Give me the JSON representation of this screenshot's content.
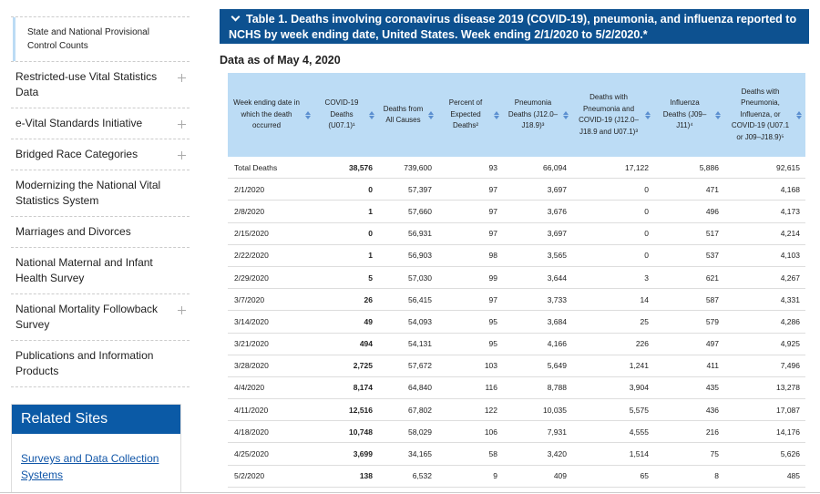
{
  "sidebar": {
    "items": [
      {
        "label": "State and National Provisional Control Counts",
        "sub": true,
        "expandable": false
      },
      {
        "label": "Restricted-use Vital Statistics Data",
        "sub": false,
        "expandable": true
      },
      {
        "label": "e-Vital Standards Initiative",
        "sub": false,
        "expandable": true
      },
      {
        "label": "Bridged Race Categories",
        "sub": false,
        "expandable": true
      },
      {
        "label": "Modernizing the National Vital Statistics System",
        "sub": false,
        "expandable": false
      },
      {
        "label": "Marriages and Divorces",
        "sub": false,
        "expandable": false
      },
      {
        "label": "National Maternal and Infant Health Survey",
        "sub": false,
        "expandable": false
      },
      {
        "label": "National Mortality Followback Survey",
        "sub": false,
        "expandable": true
      },
      {
        "label": "Publications and Information Products",
        "sub": false,
        "expandable": false
      }
    ],
    "related_title": "Related Sites",
    "related_links": [
      "Surveys and Data Collection Systems"
    ]
  },
  "panel": {
    "title": "Table 1. Deaths involving coronavirus disease 2019 (COVID-19), pneumonia, and influenza reported to NCHS by week ending date, United States. Week ending 2/1/2020 to 5/2/2020.*",
    "subtitle": "Data as of May 4, 2020"
  },
  "table": {
    "headers": [
      "Week ending date in which the death occurred",
      "COVID-19 Deaths (U07.1)¹",
      "Deaths from All Causes",
      "Percent of Expected Deaths²",
      "Pneumonia Deaths (J12.0–J18.9)³",
      "Deaths with Pneumonia and COVID-19 (J12.0–J18.9 and U07.1)³",
      "Influenza Deaths (J09–J11)⁴",
      "Deaths with Pneumonia, Influenza, or COVID-19 (U07.1 or J09–J18.9)⁵"
    ],
    "rows": [
      [
        "Total Deaths",
        "38,576",
        "739,600",
        "93",
        "66,094",
        "17,122",
        "5,886",
        "92,615"
      ],
      [
        "2/1/2020",
        "0",
        "57,397",
        "97",
        "3,697",
        "0",
        "471",
        "4,168"
      ],
      [
        "2/8/2020",
        "1",
        "57,660",
        "97",
        "3,676",
        "0",
        "496",
        "4,173"
      ],
      [
        "2/15/2020",
        "0",
        "56,931",
        "97",
        "3,697",
        "0",
        "517",
        "4,214"
      ],
      [
        "2/22/2020",
        "1",
        "56,903",
        "98",
        "3,565",
        "0",
        "537",
        "4,103"
      ],
      [
        "2/29/2020",
        "5",
        "57,030",
        "99",
        "3,644",
        "3",
        "621",
        "4,267"
      ],
      [
        "3/7/2020",
        "26",
        "56,415",
        "97",
        "3,733",
        "14",
        "587",
        "4,331"
      ],
      [
        "3/14/2020",
        "49",
        "54,093",
        "95",
        "3,684",
        "25",
        "579",
        "4,286"
      ],
      [
        "3/21/2020",
        "494",
        "54,131",
        "95",
        "4,166",
        "226",
        "497",
        "4,925"
      ],
      [
        "3/28/2020",
        "2,725",
        "57,672",
        "103",
        "5,649",
        "1,241",
        "411",
        "7,496"
      ],
      [
        "4/4/2020",
        "8,174",
        "64,840",
        "116",
        "8,788",
        "3,904",
        "435",
        "13,278"
      ],
      [
        "4/11/2020",
        "12,516",
        "67,802",
        "122",
        "10,035",
        "5,575",
        "436",
        "17,087"
      ],
      [
        "4/18/2020",
        "10,748",
        "58,029",
        "106",
        "7,931",
        "4,555",
        "216",
        "14,176"
      ],
      [
        "4/25/2020",
        "3,699",
        "34,165",
        "58",
        "3,420",
        "1,514",
        "75",
        "5,626"
      ],
      [
        "5/2/2020",
        "138",
        "6,532",
        "9",
        "409",
        "65",
        "8",
        "485"
      ]
    ]
  }
}
